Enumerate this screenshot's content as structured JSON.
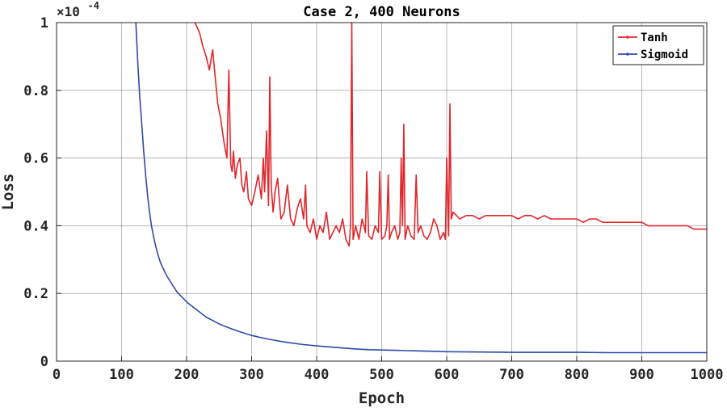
{
  "chart_data": {
    "type": "line",
    "title": "Case 2, 400 Neurons",
    "xlabel": "Epoch",
    "ylabel": "Loss",
    "y_exponent_label": "×10",
    "y_exponent_power": "-4",
    "xlim": [
      0,
      1000
    ],
    "ylim": [
      0,
      1
    ],
    "xticks": [
      "0",
      "100",
      "200",
      "300",
      "400",
      "500",
      "600",
      "700",
      "800",
      "900",
      "1000"
    ],
    "yticks": [
      "0",
      "0.2",
      "0.4",
      "0.6",
      "0.8",
      "1"
    ],
    "grid": true,
    "legend_position": "top-right",
    "series": [
      {
        "name": "Tanh",
        "color": "#e0262b",
        "x": [
          213,
          220,
          225,
          230,
          235,
          240,
          245,
          248,
          252,
          255,
          258,
          262,
          265,
          268,
          270,
          272,
          275,
          278,
          282,
          285,
          288,
          292,
          295,
          300,
          305,
          310,
          315,
          318,
          320,
          323,
          326,
          328,
          330,
          333,
          336,
          340,
          345,
          350,
          355,
          360,
          365,
          370,
          375,
          380,
          383,
          385,
          390,
          395,
          400,
          405,
          410,
          415,
          420,
          425,
          430,
          435,
          440,
          445,
          450,
          452,
          454,
          456,
          460,
          465,
          470,
          475,
          477,
          480,
          485,
          490,
          495,
          497,
          500,
          505,
          508,
          510,
          512,
          515,
          520,
          525,
          528,
          530,
          532,
          534,
          536,
          540,
          545,
          550,
          553,
          556,
          560,
          565,
          570,
          575,
          580,
          585,
          590,
          595,
          598,
          600,
          603,
          605,
          607,
          610,
          615,
          620,
          630,
          640,
          650,
          660,
          670,
          680,
          690,
          700,
          710,
          720,
          730,
          740,
          750,
          760,
          770,
          780,
          790,
          800,
          810,
          820,
          830,
          840,
          850,
          860,
          870,
          880,
          890,
          900,
          910,
          920,
          930,
          940,
          950,
          960,
          970,
          980,
          990,
          1000
        ],
        "values": [
          1.0,
          0.97,
          0.93,
          0.9,
          0.86,
          0.92,
          0.82,
          0.76,
          0.72,
          0.68,
          0.64,
          0.6,
          0.86,
          0.58,
          0.56,
          0.62,
          0.54,
          0.58,
          0.6,
          0.52,
          0.5,
          0.56,
          0.48,
          0.46,
          0.5,
          0.55,
          0.48,
          0.6,
          0.5,
          0.68,
          0.46,
          0.84,
          0.52,
          0.44,
          0.5,
          0.54,
          0.42,
          0.44,
          0.52,
          0.42,
          0.4,
          0.45,
          0.48,
          0.42,
          0.52,
          0.4,
          0.38,
          0.42,
          0.36,
          0.4,
          0.38,
          0.44,
          0.36,
          0.38,
          0.4,
          0.38,
          0.42,
          0.36,
          0.34,
          0.4,
          1.0,
          0.36,
          0.4,
          0.36,
          0.42,
          0.38,
          0.56,
          0.37,
          0.36,
          0.4,
          0.38,
          0.56,
          0.36,
          0.37,
          0.4,
          0.55,
          0.36,
          0.38,
          0.4,
          0.36,
          0.38,
          0.6,
          0.4,
          0.7,
          0.36,
          0.4,
          0.37,
          0.36,
          0.55,
          0.38,
          0.4,
          0.37,
          0.36,
          0.38,
          0.42,
          0.4,
          0.36,
          0.38,
          0.36,
          0.6,
          0.37,
          0.76,
          0.42,
          0.44,
          0.43,
          0.42,
          0.43,
          0.43,
          0.42,
          0.43,
          0.43,
          0.43,
          0.43,
          0.43,
          0.42,
          0.43,
          0.43,
          0.42,
          0.43,
          0.42,
          0.42,
          0.42,
          0.42,
          0.42,
          0.41,
          0.42,
          0.42,
          0.41,
          0.41,
          0.41,
          0.41,
          0.41,
          0.41,
          0.41,
          0.4,
          0.4,
          0.4,
          0.4,
          0.4,
          0.4,
          0.4,
          0.39,
          0.39,
          0.39
        ]
      },
      {
        "name": "Sigmoid",
        "color": "#2e4aa8",
        "x": [
          122,
          125,
          128,
          131,
          134,
          137,
          140,
          143,
          146,
          150,
          155,
          160,
          165,
          170,
          175,
          180,
          185,
          190,
          195,
          200,
          210,
          220,
          230,
          240,
          250,
          260,
          270,
          280,
          290,
          300,
          320,
          340,
          360,
          380,
          400,
          420,
          440,
          460,
          480,
          500,
          520,
          540,
          560,
          580,
          600,
          650,
          700,
          750,
          800,
          850,
          900,
          950,
          1000
        ],
        "values": [
          1.0,
          0.88,
          0.78,
          0.7,
          0.62,
          0.55,
          0.49,
          0.44,
          0.4,
          0.36,
          0.32,
          0.29,
          0.27,
          0.25,
          0.235,
          0.22,
          0.205,
          0.195,
          0.185,
          0.175,
          0.16,
          0.145,
          0.13,
          0.12,
          0.11,
          0.102,
          0.095,
          0.088,
          0.082,
          0.076,
          0.067,
          0.06,
          0.054,
          0.049,
          0.045,
          0.042,
          0.039,
          0.036,
          0.034,
          0.033,
          0.032,
          0.031,
          0.03,
          0.029,
          0.028,
          0.027,
          0.026,
          0.026,
          0.026,
          0.025,
          0.025,
          0.025,
          0.025
        ]
      }
    ]
  }
}
